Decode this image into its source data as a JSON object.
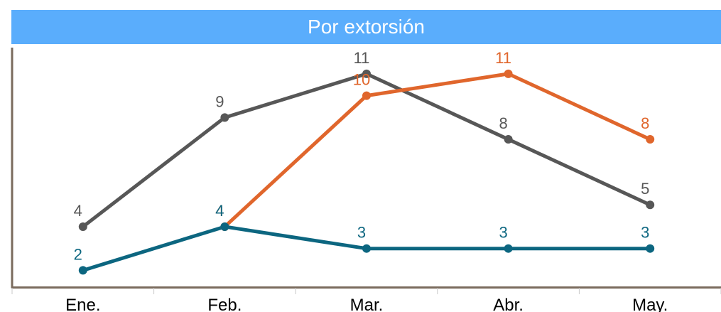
{
  "chart_data": {
    "type": "line",
    "title": "Por extorsión",
    "categories": [
      "Ene.",
      "Feb.",
      "Mar.",
      "Abr.",
      "May."
    ],
    "series": [
      {
        "values": [
          4,
          9,
          11,
          8,
          5
        ],
        "color": "#575757"
      },
      {
        "values": [
          null,
          4,
          10,
          11,
          8
        ],
        "color": "#e0662c"
      },
      {
        "values": [
          2,
          4,
          3,
          3,
          3
        ],
        "color": "#0c6680"
      }
    ],
    "ylim": [
      1.2,
      12.2
    ],
    "grid": false,
    "legend": "none"
  }
}
